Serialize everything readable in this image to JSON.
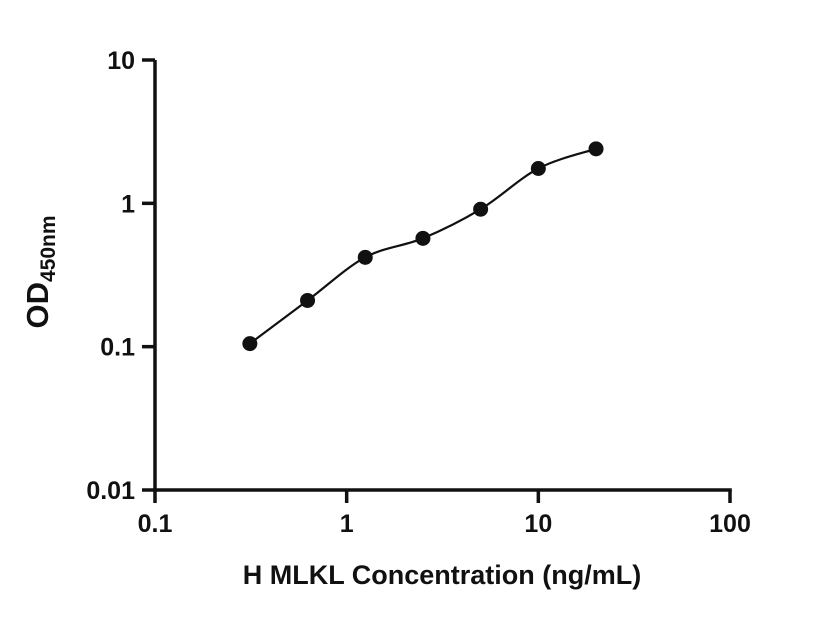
{
  "chart_data": {
    "type": "scatter",
    "title": "",
    "xlabel": "H MLKL Concentration (ng/mL)",
    "ylabel": "OD",
    "ylabel_subscript": "450nm",
    "x": [
      0.3125,
      0.625,
      1.25,
      2.5,
      5,
      10,
      20
    ],
    "y": [
      0.105,
      0.21,
      0.42,
      0.57,
      0.91,
      1.75,
      2.4
    ],
    "xscale": "log",
    "yscale": "log",
    "xlim": [
      0.1,
      100
    ],
    "ylim": [
      0.01,
      10
    ],
    "x_ticks": [
      "0.1",
      "1",
      "10",
      "100"
    ],
    "y_ticks": [
      "0.01",
      "0.1",
      "1",
      "10"
    ],
    "grid": false,
    "legend": "none",
    "marker_color": "#111111",
    "line_color": "#111111",
    "axis_color": "#111111"
  }
}
